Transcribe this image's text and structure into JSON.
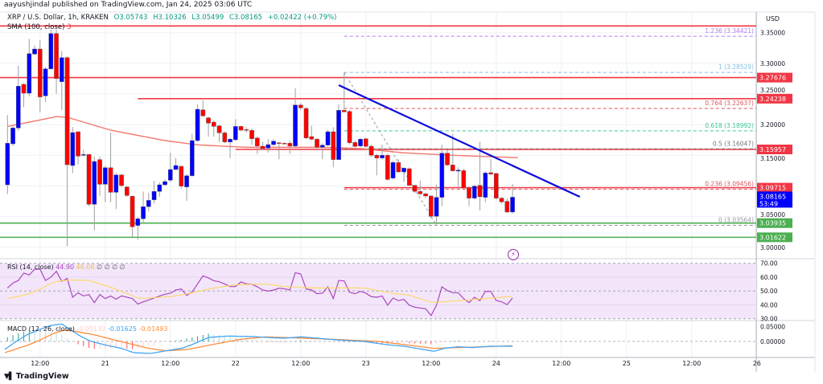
{
  "header": {
    "published": "aayushjindal published on TradingView.com, Jan 24, 2025 03:06 UTC"
  },
  "legend": {
    "symbol": "XRP / U.S. Dollar, 1h, KRAKEN",
    "open": "O3.05743",
    "high": "H3.10326",
    "low": "L3.05499",
    "close": "C3.08165",
    "change": "+0.02422 (+0.79%)",
    "sma_label": "SMA (100, close)",
    "sma_value": "3"
  },
  "colors": {
    "up": "#0000ff",
    "down": "#ff0000",
    "sma": "#f4766b",
    "trendline": "#0b0bdc",
    "support": "#4caf50",
    "resistance": "#f23645",
    "rsi": "#ab47bc",
    "rsi_ma": "#fdd860",
    "macd": "#42a5f5",
    "signal": "#ff8c3a"
  },
  "chart_data": {
    "type": "candlestick",
    "interval": "1h",
    "start": "2025-01-20 06:00",
    "currency": "USD",
    "ylim": [
      2.97,
      3.37
    ],
    "candles_ohlc": [
      [
        3.1019,
        3.2155,
        3.0866,
        3.1696
      ],
      [
        3.1687,
        3.198,
        3.165,
        3.1945
      ],
      [
        3.1945,
        3.2963,
        3.19,
        3.2627
      ],
      [
        3.2657,
        3.268,
        3.2286,
        3.2513
      ],
      [
        3.2513,
        3.34,
        3.246,
        3.3159
      ],
      [
        3.3151,
        3.329,
        3.314,
        3.3234
      ],
      [
        3.3234,
        3.338,
        3.22,
        3.2452
      ],
      [
        3.2469,
        3.294,
        3.237,
        3.291
      ],
      [
        3.291,
        3.355,
        3.29,
        3.3487
      ],
      [
        3.3487,
        3.355,
        3.2504,
        3.2753
      ],
      [
        3.2701,
        3.32,
        3.224,
        3.3094
      ],
      [
        3.3094,
        3.3116,
        3.0014,
        3.1346
      ],
      [
        3.1333,
        3.196,
        3.121,
        3.1871
      ],
      [
        3.1884,
        3.189,
        3.135,
        3.1486
      ],
      [
        3.1499,
        3.159,
        3.148,
        3.1513
      ],
      [
        3.1513,
        3.152,
        3.067,
        3.07
      ],
      [
        3.07,
        3.148,
        3.0276,
        3.1399
      ],
      [
        3.143,
        3.148,
        3.084,
        3.1027
      ],
      [
        3.1027,
        3.1325,
        3.0735,
        3.1298
      ],
      [
        3.1298,
        3.187,
        3.0735,
        3.0896
      ],
      [
        3.0896,
        3.121,
        3.0626,
        3.118
      ],
      [
        3.118,
        3.1194,
        3.0975,
        3.1006
      ],
      [
        3.0984,
        3.0997,
        3.0822,
        3.0844
      ],
      [
        3.0831,
        3.0844,
        3.0167,
        3.0333
      ],
      [
        3.0355,
        3.0494,
        3.0123,
        3.0464
      ],
      [
        3.0464,
        3.091,
        3.0407,
        3.0661
      ],
      [
        3.0661,
        3.0888,
        3.0582,
        3.0765
      ],
      [
        3.0774,
        3.1084,
        3.0713,
        3.091
      ],
      [
        3.091,
        3.1062,
        3.0822,
        3.1019
      ],
      [
        3.1019,
        3.1106,
        3.0997,
        3.1071
      ],
      [
        3.1093,
        3.1543,
        3.1062,
        3.1268
      ],
      [
        3.1268,
        3.1456,
        3.126,
        3.1333
      ],
      [
        3.132,
        3.1333,
        3.0953,
        3.0997
      ],
      [
        3.0984,
        3.1194,
        3.0757,
        3.1167
      ],
      [
        3.1167,
        3.1849,
        3.115,
        3.174
      ],
      [
        3.174,
        3.233,
        3.1718,
        3.2251
      ],
      [
        3.2242,
        3.2395,
        3.2133,
        3.2142
      ],
      [
        3.2111,
        3.2133,
        3.1805,
        3.2024
      ],
      [
        3.2041,
        3.2067,
        3.1805,
        3.1971
      ],
      [
        3.198,
        3.2002,
        3.1718,
        3.1866
      ],
      [
        3.1866,
        3.1893,
        3.17,
        3.1718
      ],
      [
        3.1718,
        3.1783,
        3.1456,
        3.1762
      ],
      [
        3.1753,
        3.2089,
        3.174,
        3.1971
      ],
      [
        3.1971,
        3.198,
        3.1893,
        3.191
      ],
      [
        3.1919,
        3.1958,
        3.1871,
        3.1915
      ],
      [
        3.1906,
        3.1937,
        3.1674,
        3.177
      ],
      [
        3.1783,
        3.1805,
        3.1522,
        3.1652
      ],
      [
        3.1648,
        3.1718,
        3.1587,
        3.1609
      ],
      [
        3.1617,
        3.1762,
        3.1543,
        3.1674
      ],
      [
        3.1674,
        3.1762,
        3.1652,
        3.1731
      ],
      [
        3.1705,
        3.1718,
        3.1434,
        3.17
      ],
      [
        3.1696,
        3.171,
        3.168,
        3.1692
      ],
      [
        3.1696,
        3.174,
        3.1522,
        3.1652
      ],
      [
        3.1652,
        3.2592,
        3.163,
        3.2321
      ],
      [
        3.2321,
        3.2352,
        3.2242,
        3.2273
      ],
      [
        3.2264,
        3.2286,
        3.1762,
        3.1783
      ],
      [
        3.1805,
        3.198,
        3.174,
        3.1762
      ],
      [
        3.1762,
        3.1783,
        3.1609,
        3.1631
      ],
      [
        3.1631,
        3.1696,
        3.1434,
        3.1666
      ],
      [
        3.1666,
        3.1915,
        3.1652,
        3.1884
      ],
      [
        3.1884,
        3.1958,
        3.1303,
        3.143
      ],
      [
        3.143,
        3.233,
        3.1421,
        3.2234
      ],
      [
        3.2234,
        3.2853,
        3.22,
        3.2208
      ],
      [
        3.2216,
        3.2242,
        3.1674,
        3.1705
      ],
      [
        3.1709,
        3.174,
        3.1631,
        3.1644
      ],
      [
        3.1652,
        3.1783,
        3.1631,
        3.1762
      ],
      [
        3.177,
        3.1783,
        3.1631,
        3.1644
      ],
      [
        3.1648,
        3.1674,
        3.1478,
        3.15
      ],
      [
        3.15,
        3.1522,
        3.1172,
        3.1456
      ],
      [
        3.1456,
        3.1674,
        3.1434,
        3.15
      ],
      [
        3.15,
        3.1522,
        3.1085,
        3.1106
      ],
      [
        3.1128,
        3.1412,
        3.1106,
        3.1382
      ],
      [
        3.1382,
        3.1434,
        3.1216,
        3.1229
      ],
      [
        3.1229,
        3.1303,
        3.1063,
        3.129
      ],
      [
        3.1281,
        3.1303,
        3.0997,
        3.101
      ],
      [
        3.101,
        3.1019,
        3.0888,
        3.091
      ],
      [
        3.091,
        3.1085,
        3.0844,
        3.0871
      ],
      [
        3.0871,
        3.0888,
        3.0801,
        3.0836
      ],
      [
        3.0836,
        3.0844,
        3.0473,
        3.0504
      ],
      [
        3.0504,
        3.1019,
        3.0356,
        3.0814
      ],
      [
        3.0814,
        3.1674,
        3.067,
        3.1535
      ],
      [
        3.1535,
        3.1587,
        3.1325,
        3.1342
      ],
      [
        3.1342,
        3.1849,
        3.1237,
        3.1246
      ],
      [
        3.1242,
        3.1303,
        3.0975,
        3.1259
      ],
      [
        3.125,
        3.1281,
        3.0953,
        3.0967
      ],
      [
        3.0967,
        3.0997,
        3.067,
        3.0801
      ],
      [
        3.0801,
        3.1019,
        3.0779,
        3.0997
      ],
      [
        3.101,
        3.1718,
        3.0604,
        3.0823
      ],
      [
        3.0814,
        3.1237,
        3.0736,
        3.1211
      ],
      [
        3.1216,
        3.1434,
        3.1172,
        3.1194
      ],
      [
        3.1203,
        3.1216,
        3.0779,
        3.0801
      ],
      [
        3.0801,
        3.0823,
        3.0713,
        3.074
      ],
      [
        3.0749,
        3.0801,
        3.056,
        3.0574
      ],
      [
        3.05743,
        3.10326,
        3.05499,
        3.08165
      ]
    ],
    "sma100_knots": [
      [
        0,
        3.197
      ],
      [
        9,
        3.213
      ],
      [
        11,
        3.212
      ],
      [
        19,
        3.191
      ],
      [
        29,
        3.174
      ],
      [
        35,
        3.167
      ],
      [
        44,
        3.163
      ],
      [
        58,
        3.163
      ],
      [
        65,
        3.161
      ],
      [
        73,
        3.154
      ],
      [
        82,
        3.15
      ],
      [
        94,
        3.146
      ]
    ],
    "horizontal_levels": [
      {
        "price": 3.361,
        "color": "#f23645",
        "from_bar": 0
      },
      {
        "price": 3.27676,
        "color": "#f23645",
        "from_bar": 0,
        "tag": "3.27676"
      },
      {
        "price": 3.24238,
        "color": "#f23645",
        "from_bar": 24,
        "tag": "3.24238"
      },
      {
        "price": 3.15957,
        "color": "#f23645",
        "from_bar": 42,
        "tag": "3.15957"
      },
      {
        "price": 3.09715,
        "color": "#f23645",
        "from_bar": 62,
        "tag": "3.09715"
      },
      {
        "price": 3.03935,
        "color": "#4caf50",
        "from_bar": 0,
        "tag": "3.03935"
      },
      {
        "price": 3.01622,
        "color": "#4caf50",
        "from_bar": 0,
        "tag": "3.01622"
      }
    ],
    "fib_levels": [
      {
        "label": "1.236 (3.34421)",
        "price": 3.34421,
        "color": "#b47cf0"
      },
      {
        "label": "1 (3.28529)",
        "price": 3.28529,
        "color": "#7ec3ea"
      },
      {
        "label": "0.764 (3.22637)",
        "price": 3.22637,
        "color": "#e0555b"
      },
      {
        "label": "0.618 (3.18992)",
        "price": 3.18992,
        "color": "#3cc79a"
      },
      {
        "label": "0.5 (3.16047)",
        "price": 3.16047,
        "color": "#777777"
      },
      {
        "label": "0.236 (3.09456)",
        "price": 3.09456,
        "color": "#e0555b"
      },
      {
        "label": "0 (3.03564)",
        "price": 3.03564,
        "color": "#9598a1"
      }
    ],
    "fib_anchor": {
      "from": [
        62,
        3.28529
      ],
      "to": [
        79,
        3.03564
      ]
    },
    "trendline": {
      "from": [
        61,
        3.2644
      ],
      "to": [
        105.4,
        3.0822
      ]
    },
    "price_axis": [
      "3.35000",
      "3.30000",
      "3.25000",
      "3.20000",
      "3.15000",
      "3.05000",
      "3.00000"
    ],
    "last_price": {
      "value": "3.08165",
      "countdown": "53:49"
    },
    "time_axis": [
      "12:00",
      "21",
      "12:00",
      "22",
      "12:00",
      "23",
      "12:00",
      "24",
      "12:00",
      "25",
      "12:00",
      "26"
    ],
    "rsi": {
      "label": "RSI (14, close)",
      "value": "44.90",
      "ma_value": "46.06",
      "extra": "∅ ∅ ∅ ∅",
      "axis": [
        "70.00",
        "60.00",
        "50.00",
        "40.00",
        "30.00"
      ],
      "values": [
        52.2,
        55.7,
        57.6,
        62.9,
        61.5,
        65.7,
        65.7,
        57.6,
        60.0,
        64.2,
        56.9,
        59.0,
        45.5,
        48.7,
        46.4,
        47.4,
        41.6,
        47.4,
        44.5,
        46.4,
        44.1,
        46.4,
        45.5,
        44.5,
        40.6,
        42.2,
        43.5,
        44.9,
        46.4,
        47.6,
        48.4,
        50.7,
        51.5,
        46.8,
        49.3,
        55.1,
        60.9,
        59.4,
        57.4,
        56.7,
        55.1,
        53.2,
        53.2,
        56.5,
        55.1,
        54.9,
        53.0,
        50.7,
        49.9,
        50.7,
        52.0,
        51.6,
        50.7,
        63.2,
        62.3,
        51.5,
        50.7,
        48.0,
        48.4,
        53.0,
        44.5,
        57.6,
        57.2,
        49.1,
        48.0,
        49.7,
        48.4,
        45.9,
        45.5,
        46.4,
        39.7,
        44.9,
        43.0,
        43.9,
        39.7,
        38.3,
        37.7,
        37.2,
        32.3,
        39.7,
        53.0,
        50.3,
        48.7,
        48.7,
        44.5,
        41.6,
        45.5,
        43.0,
        49.7,
        49.7,
        43.1,
        42.2,
        40.1,
        44.9
      ],
      "ma_knots": [
        [
          0,
          44.5
        ],
        [
          3.6,
          47.4
        ],
        [
          6,
          51.3
        ],
        [
          8.5,
          56.5
        ],
        [
          11.5,
          58.0
        ],
        [
          15,
          57.6
        ],
        [
          19.4,
          52.2
        ],
        [
          24.3,
          44.5
        ],
        [
          30.2,
          46.0
        ],
        [
          33.2,
          48.0
        ],
        [
          38.1,
          52.2
        ],
        [
          42.1,
          54.5
        ],
        [
          47.5,
          55.1
        ],
        [
          51,
          53.2
        ],
        [
          56,
          52.2
        ],
        [
          65.7,
          52.2
        ],
        [
          70.8,
          48.4
        ],
        [
          74.2,
          46.8
        ],
        [
          78.2,
          41.6
        ],
        [
          83,
          43.0
        ],
        [
          88,
          44.5
        ],
        [
          93,
          46.06
        ]
      ]
    },
    "macd": {
      "label": "MACD (12, 26, close)",
      "histogram_value": "-0.00132",
      "macd_value": "-0.01625",
      "signal_value": "-0.01493",
      "axis": [
        "0.05000",
        "0.00000"
      ],
      "macd_knots": [
        [
          -0.5,
          -0.0273
        ],
        [
          1.6,
          0
        ],
        [
          3.6,
          0.0228
        ],
        [
          6,
          0.041
        ],
        [
          8,
          0.0546
        ],
        [
          10,
          0.0592
        ],
        [
          11.5,
          0.041
        ],
        [
          13.4,
          0.0182
        ],
        [
          15.4,
          0
        ],
        [
          18.4,
          -0.0137
        ],
        [
          20.8,
          -0.0228
        ],
        [
          23.3,
          -0.0383
        ],
        [
          26.3,
          -0.041
        ],
        [
          29.2,
          -0.0319
        ],
        [
          32.2,
          -0.0228
        ],
        [
          34.2,
          -0.0091
        ],
        [
          37.1,
          0.0137
        ],
        [
          40.6,
          0.0182
        ],
        [
          45.5,
          0.0164
        ],
        [
          47.5,
          0.0137
        ],
        [
          51,
          0.0109
        ],
        [
          54,
          0.0155
        ],
        [
          56,
          0.0127
        ],
        [
          61,
          0.0046
        ],
        [
          65.7,
          0
        ],
        [
          69.7,
          -0.0109
        ],
        [
          73,
          -0.0164
        ],
        [
          75.7,
          -0.0246
        ],
        [
          78.6,
          -0.0337
        ],
        [
          80.6,
          -0.0228
        ],
        [
          83,
          -0.0182
        ],
        [
          85.6,
          -0.0209
        ],
        [
          89,
          -0.0164
        ],
        [
          93,
          -0.01625
        ]
      ],
      "signal_knots": [
        [
          -0.5,
          -0.0383
        ],
        [
          3.6,
          -0.0137
        ],
        [
          6,
          0.0046
        ],
        [
          8.5,
          0.0273
        ],
        [
          10.5,
          0.0383
        ],
        [
          12.4,
          0.0346
        ],
        [
          15.9,
          0.0228
        ],
        [
          20.8,
          0
        ],
        [
          25.8,
          -0.0228
        ],
        [
          29.2,
          -0.0319
        ],
        [
          33.2,
          -0.0273
        ],
        [
          38.1,
          -0.0091
        ],
        [
          43,
          0.0073
        ],
        [
          47.5,
          0.0155
        ],
        [
          53.4,
          0.0118
        ],
        [
          60.8,
          0.0064
        ],
        [
          68.3,
          0
        ],
        [
          73.1,
          -0.0109
        ],
        [
          78.6,
          -0.0237
        ],
        [
          83,
          -0.0209
        ],
        [
          93,
          -0.01493
        ]
      ]
    }
  },
  "footer": {
    "brand": "TradingView",
    "logo_mark": "TV"
  }
}
